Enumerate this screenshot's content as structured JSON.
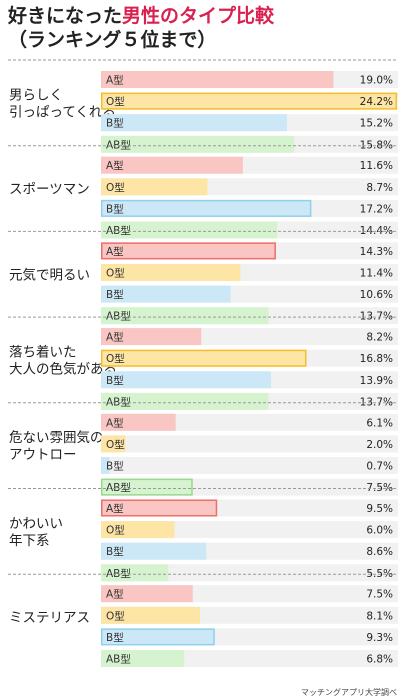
{
  "title": {
    "line1_plain": "好きになった",
    "line1_accent": "男性のタイプ比較",
    "line2": "（ランキング５位まで）"
  },
  "source": "マッチングアプリ大学調べ",
  "colors": {
    "A型": "#fac6c3",
    "O型": "#fde5a6",
    "B型": "#cce8f6",
    "AB型": "#d6f3cf",
    "A型_border": "#ec6f6a",
    "O型_border": "#f5be2c",
    "B型_border": "#8fd0ee",
    "AB型_border": "#9ad88e",
    "track": "#f1f1f1"
  },
  "chart_data": {
    "type": "bar",
    "orientation": "horizontal",
    "blood_types": [
      "A型",
      "O型",
      "B型",
      "AB型"
    ],
    "unit": "%",
    "xlim": [
      0,
      24.2
    ],
    "groups": [
      {
        "label": "男らしく\n引っぱってくれる",
        "values": [
          19.0,
          24.2,
          15.2,
          15.8
        ],
        "value_labels": [
          "19.0%",
          "24.2%",
          "15.2%",
          "15.8%"
        ],
        "highlight": "O型"
      },
      {
        "label": "スポーツマン",
        "values": [
          11.6,
          8.7,
          17.2,
          14.4
        ],
        "value_labels": [
          "11.6%",
          "8.7%",
          "17.2%",
          "14.4%"
        ],
        "highlight": "B型"
      },
      {
        "label": "元気で明るい",
        "values": [
          14.3,
          11.4,
          10.6,
          13.7
        ],
        "value_labels": [
          "14.3%",
          "11.4%",
          "10.6%",
          "13.7%"
        ],
        "highlight": "A型"
      },
      {
        "label": "落ち着いた\n大人の色気がある",
        "values": [
          8.2,
          16.8,
          13.9,
          13.7
        ],
        "value_labels": [
          "8.2%",
          "16.8%",
          "13.9%",
          "13.7%"
        ],
        "highlight": "O型"
      },
      {
        "label": "危ない雰囲気の\nアウトロー",
        "values": [
          6.1,
          2.0,
          0.7,
          7.5
        ],
        "value_labels": [
          "6.1%",
          "2.0%",
          "0.7%",
          "7.5%"
        ],
        "highlight": "AB型"
      },
      {
        "label": "かわいい\n年下系",
        "values": [
          9.5,
          6.0,
          8.6,
          5.5
        ],
        "value_labels": [
          "9.5%",
          "6.0%",
          "8.6%",
          "5.5%"
        ],
        "highlight": "A型"
      },
      {
        "label": "ミステリアス",
        "values": [
          7.5,
          8.1,
          9.3,
          6.8
        ],
        "value_labels": [
          "7.5%",
          "8.1%",
          "9.3%",
          "6.8%"
        ],
        "highlight": "B型"
      }
    ]
  }
}
